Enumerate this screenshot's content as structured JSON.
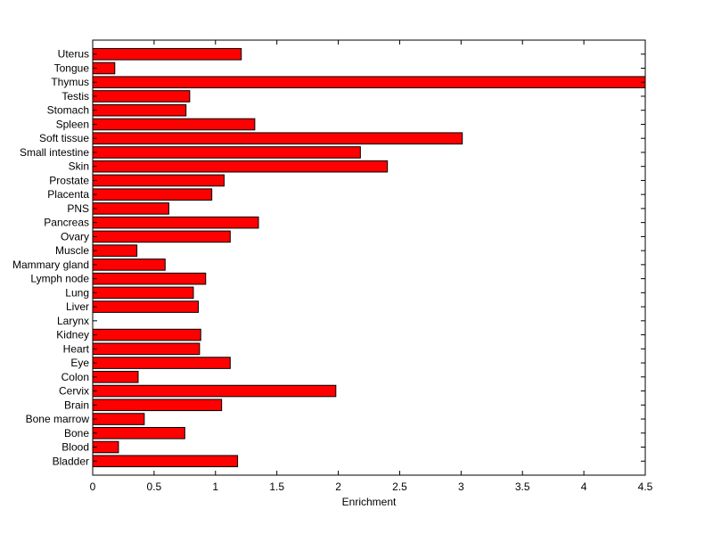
{
  "chart_data": {
    "type": "bar",
    "orientation": "horizontal",
    "categories": [
      "Bladder",
      "Blood",
      "Bone",
      "Bone marrow",
      "Brain",
      "Cervix",
      "Colon",
      "Eye",
      "Heart",
      "Kidney",
      "Larynx",
      "Liver",
      "Lung",
      "Lymph node",
      "Mammary gland",
      "Muscle",
      "Ovary",
      "Pancreas",
      "PNS",
      "Placenta",
      "Prostate",
      "Skin",
      "Small intestine",
      "Soft tissue",
      "Spleen",
      "Stomach",
      "Testis",
      "Thymus",
      "Tongue",
      "Uterus"
    ],
    "values": [
      1.18,
      0.21,
      0.75,
      0.42,
      1.05,
      1.98,
      0.37,
      1.12,
      0.87,
      0.88,
      0.0,
      0.86,
      0.82,
      0.92,
      0.59,
      0.36,
      1.12,
      1.35,
      0.62,
      0.97,
      1.07,
      2.4,
      2.18,
      3.01,
      1.32,
      0.76,
      0.79,
      4.5,
      0.18,
      1.21
    ],
    "xlabel": "Enrichment",
    "ylabel": "",
    "title": "",
    "xlim": [
      0,
      4.5
    ],
    "xticks": [
      "0",
      "0.5",
      "1",
      "1.5",
      "2",
      "2.5",
      "3",
      "3.5",
      "4",
      "4.5"
    ],
    "bar_color": "#ff0000",
    "grid": false
  }
}
